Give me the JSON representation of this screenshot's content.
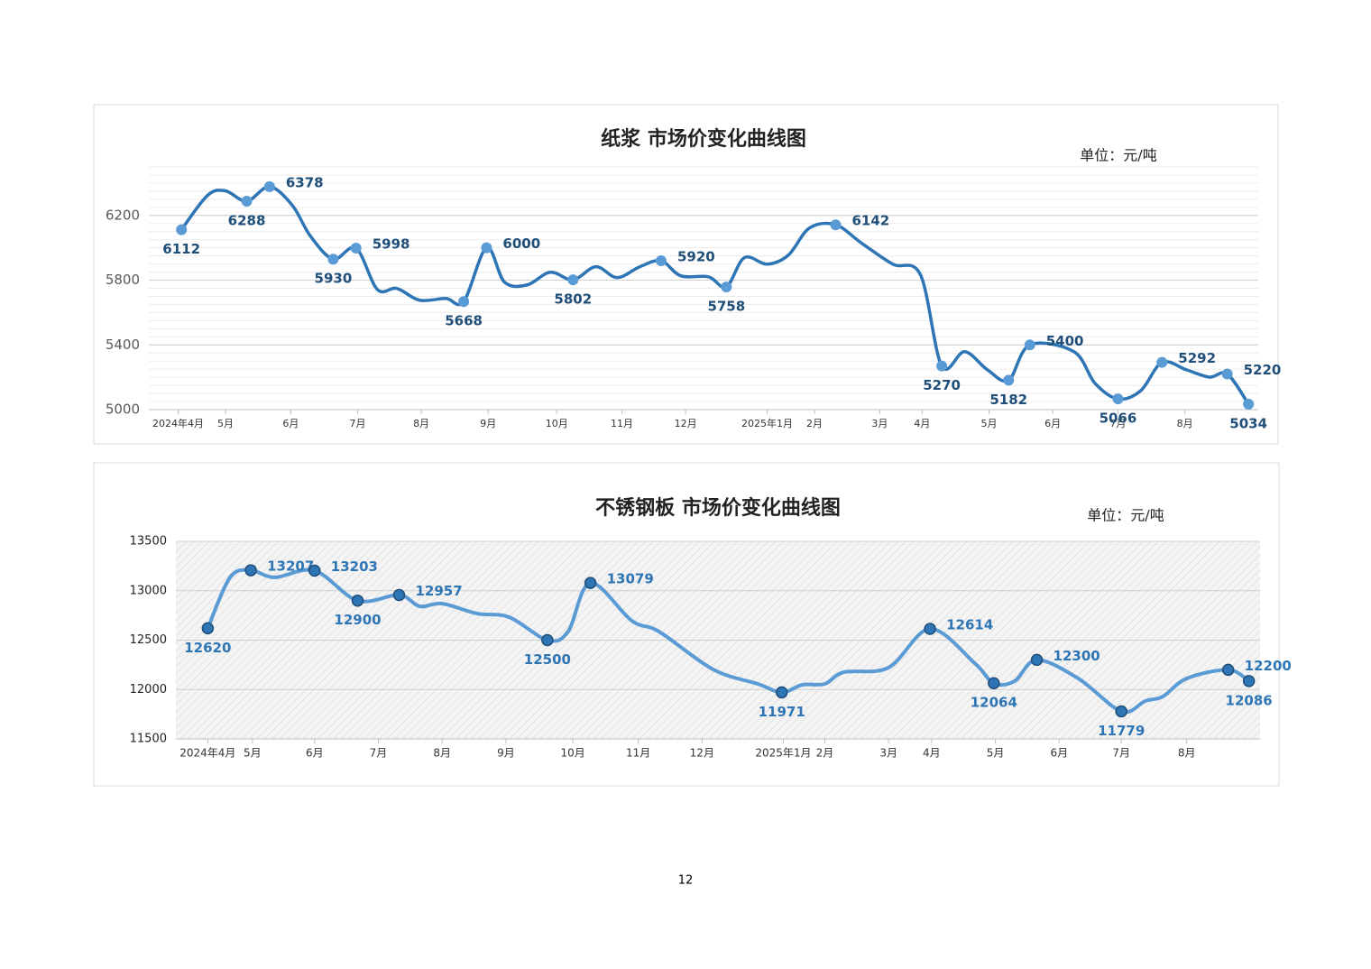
{
  "chart_data": [
    {
      "type": "line",
      "title": "纸浆 市场价变化曲线图",
      "unit": "单位：元/吨",
      "xlim": [
        0,
        68
      ],
      "xticks": [
        {
          "value": 1.8,
          "label": "2024年4月"
        },
        {
          "value": 4.7,
          "label": "5月"
        },
        {
          "value": 8.7,
          "label": "6月"
        },
        {
          "value": 12.8,
          "label": "7月"
        },
        {
          "value": 16.7,
          "label": "8月"
        },
        {
          "value": 20.8,
          "label": "9月"
        },
        {
          "value": 25.0,
          "label": "10月"
        },
        {
          "value": 29.0,
          "label": "11月"
        },
        {
          "value": 32.9,
          "label": "12月"
        },
        {
          "value": 37.9,
          "label": "2025年1月"
        },
        {
          "value": 40.8,
          "label": "2月"
        },
        {
          "value": 44.8,
          "label": "3月"
        },
        {
          "value": 47.4,
          "label": "4月"
        },
        {
          "value": 51.5,
          "label": "5月"
        },
        {
          "value": 55.4,
          "label": "6月"
        },
        {
          "value": 59.4,
          "label": "7月"
        },
        {
          "value": 63.5,
          "label": "8月"
        }
      ],
      "ylim": [
        5000,
        6500
      ],
      "yticks": [
        5000,
        5400,
        5800,
        6200
      ],
      "grid": true,
      "minor_grid": true,
      "background": "plain",
      "series": [
        {
          "color": "#2e75b6",
          "x": [
            2.0,
            3.6,
            4.7,
            6.0,
            7.4,
            8.8,
            9.9,
            11.3,
            12.7,
            14.0,
            15.2,
            16.6,
            18.2,
            19.3,
            20.7,
            21.8,
            23.2,
            24.6,
            26.0,
            27.4,
            28.7,
            30.1,
            31.4,
            32.6,
            34.3,
            35.4,
            36.5,
            37.9,
            39.2,
            40.5,
            42.1,
            43.7,
            45.6,
            47.3,
            48.6,
            50.0,
            51.4,
            52.7,
            54.0,
            56.7,
            58.0,
            59.4,
            60.8,
            62.1,
            63.6,
            65.0,
            66.1,
            67.4
          ],
          "values": [
            6112,
            6324,
            6352,
            6288,
            6378,
            6262,
            6073,
            5930,
            5998,
            5743,
            5749,
            5676,
            5687,
            5668,
            6000,
            5788,
            5771,
            5849,
            5802,
            5883,
            5816,
            5883,
            5920,
            5827,
            5821,
            5758,
            5939,
            5899,
            5955,
            6123,
            6142,
            6028,
            5899,
            5832,
            5270,
            5358,
            5246,
            5182,
            5400,
            5358,
            5162,
            5066,
            5117,
            5292,
            5246,
            5201,
            5220,
            5034
          ]
        },
        {
          "color": "#5b9bd5",
          "marker": "circle",
          "data_labels": true,
          "label_color": "#1f4e79",
          "x": [
            2.0,
            6.0,
            7.4,
            11.3,
            12.7,
            19.3,
            20.7,
            26.0,
            31.4,
            35.4,
            42.1,
            48.6,
            52.7,
            54.0,
            59.4,
            62.1,
            66.1,
            67.4
          ],
          "values": [
            6112,
            6288,
            6378,
            5930,
            5998,
            5668,
            6000,
            5802,
            5920,
            5758,
            6142,
            5270,
            5182,
            5400,
            5066,
            5292,
            5220,
            5034
          ]
        }
      ]
    },
    {
      "type": "line",
      "title": "不锈钢板 市场价变化曲线图",
      "unit": "单位：元/吨",
      "xlim": [
        0,
        68
      ],
      "xticks": [
        {
          "value": 2.0,
          "label": "2024年4月"
        },
        {
          "value": 4.8,
          "label": "5月"
        },
        {
          "value": 8.7,
          "label": "6月"
        },
        {
          "value": 12.7,
          "label": "7月"
        },
        {
          "value": 16.7,
          "label": "8月"
        },
        {
          "value": 20.7,
          "label": "9月"
        },
        {
          "value": 24.9,
          "label": "10月"
        },
        {
          "value": 29.0,
          "label": "11月"
        },
        {
          "value": 33.0,
          "label": "12月"
        },
        {
          "value": 38.1,
          "label": "2025年1月"
        },
        {
          "value": 40.7,
          "label": "2月"
        },
        {
          "value": 44.7,
          "label": "3月"
        },
        {
          "value": 47.4,
          "label": "4月"
        },
        {
          "value": 51.4,
          "label": "5月"
        },
        {
          "value": 55.4,
          "label": "6月"
        },
        {
          "value": 59.3,
          "label": "7月"
        },
        {
          "value": 63.4,
          "label": "8月"
        }
      ],
      "ylim": [
        11500,
        13500
      ],
      "yticks": [
        11500,
        12000,
        12500,
        13000,
        13500
      ],
      "grid": true,
      "minor_grid": false,
      "background": "hatch",
      "series": [
        {
          "color": "#5b9bd5",
          "x": [
            2.0,
            3.4,
            4.7,
            6.2,
            8.7,
            11.4,
            14.0,
            15.3,
            16.7,
            18.9,
            20.9,
            23.3,
            24.6,
            26.0,
            28.6,
            30.3,
            33.7,
            36.5,
            38.0,
            39.3,
            40.7,
            41.9,
            44.7,
            47.3,
            50.1,
            51.3,
            52.6,
            54.0,
            56.6,
            59.3,
            60.8,
            61.9,
            63.4,
            66.0,
            67.3
          ],
          "values": [
            12620,
            13135,
            13207,
            13135,
            13203,
            12900,
            12957,
            12842,
            12870,
            12769,
            12733,
            12500,
            12587,
            13079,
            12696,
            12587,
            12203,
            12057,
            11971,
            12048,
            12057,
            12176,
            12222,
            12614,
            12267,
            12064,
            12084,
            12300,
            12112,
            11779,
            11884,
            11929,
            12112,
            12200,
            12086
          ]
        },
        {
          "color": "#2e75b6",
          "marker": "circle",
          "data_labels": true,
          "label_color": "#2e75b6",
          "x": [
            2.0,
            4.7,
            8.7,
            11.4,
            14.0,
            23.3,
            26.0,
            38.0,
            47.3,
            51.3,
            54.0,
            59.3,
            66.0,
            67.3
          ],
          "values": [
            12620,
            13207,
            13203,
            12900,
            12957,
            12500,
            13079,
            11971,
            12614,
            12064,
            12300,
            11779,
            12200,
            12086
          ]
        }
      ]
    }
  ],
  "page_number": "12"
}
